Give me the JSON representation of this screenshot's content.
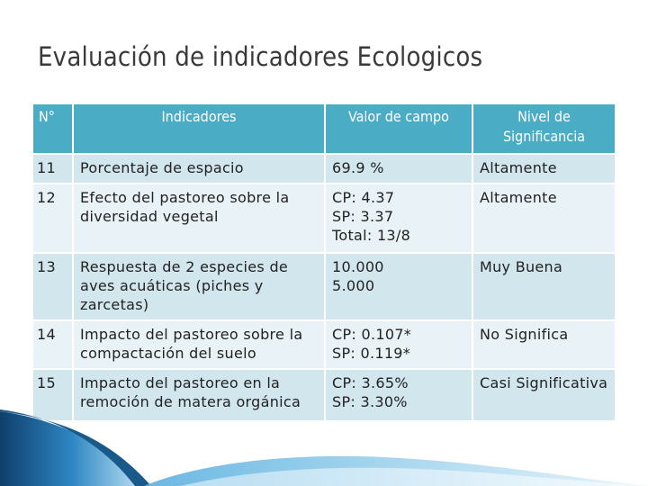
{
  "slide": {
    "title": "Evaluación de indicadores Ecologicos"
  },
  "table": {
    "headers": {
      "index": "N°",
      "indicator": "Indicadores",
      "value": "Valor de campo",
      "significance": "Nivel de Significancia"
    },
    "rows": [
      {
        "n": "11",
        "indicator": "Porcentaje de espacio",
        "value": "69.9 %",
        "significance": "Altamente"
      },
      {
        "n": "12",
        "indicator": "Efecto del pastoreo sobre la diversidad vegetal",
        "value": "CP: 4.37\nSP: 3.37\nTotal: 13/8",
        "significance": "Altamente"
      },
      {
        "n": "13",
        "indicator": "Respuesta de 2 especies de aves acuáticas (piches y zarcetas)",
        "value": "10.000\n5.000",
        "significance": "Muy Buena"
      },
      {
        "n": "14",
        "indicator": "Impacto del pastoreo sobre la compactación del suelo",
        "value": "CP: 0.107*\nSP: 0.119*",
        "significance": "No Significa"
      },
      {
        "n": "15",
        "indicator": "Impacto del pastoreo en la remoción de matera orgánica",
        "value": "CP: 3.65%\nSP: 3.30%",
        "significance": "Casi Significativa"
      }
    ]
  },
  "colors": {
    "header_bg": "#4bacc6",
    "row_odd": "#d2e6ee",
    "row_even": "#e9f2f6",
    "accent_dark": "#1a5a8a"
  }
}
